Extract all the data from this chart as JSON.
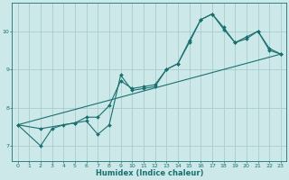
{
  "xlabel": "Humidex (Indice chaleur)",
  "bg_color": "#cce8e8",
  "grid_color": "#aacccc",
  "line_color": "#1a7070",
  "xlim": [
    -0.5,
    23.5
  ],
  "ylim": [
    6.6,
    10.75
  ],
  "xticks": [
    0,
    1,
    2,
    3,
    4,
    5,
    6,
    7,
    8,
    9,
    10,
    11,
    12,
    13,
    14,
    15,
    16,
    17,
    18,
    19,
    20,
    21,
    22,
    23
  ],
  "yticks": [
    7,
    8,
    9,
    10
  ],
  "series": [
    {
      "x": [
        0,
        2,
        3,
        4,
        5,
        6,
        7,
        8,
        9,
        10,
        11,
        12,
        13,
        14,
        15,
        16,
        17,
        18,
        19,
        20,
        21,
        22,
        23
      ],
      "y": [
        7.55,
        7.0,
        7.45,
        7.55,
        7.6,
        7.65,
        7.3,
        7.55,
        8.85,
        8.45,
        8.5,
        8.55,
        9.0,
        9.15,
        9.75,
        10.3,
        10.45,
        10.05,
        9.7,
        9.8,
        10.0,
        9.5,
        9.4
      ]
    },
    {
      "x": [
        0,
        2,
        5,
        6,
        7,
        8,
        9,
        10,
        11,
        12,
        13,
        14,
        15,
        16,
        17,
        18,
        19,
        20,
        21,
        22,
        23
      ],
      "y": [
        7.55,
        7.45,
        7.6,
        7.75,
        7.75,
        8.05,
        8.7,
        8.5,
        8.55,
        8.6,
        9.0,
        9.15,
        9.7,
        10.3,
        10.45,
        10.1,
        9.7,
        9.85,
        10.0,
        9.55,
        9.4
      ]
    },
    {
      "x": [
        0,
        23
      ],
      "y": [
        7.55,
        9.4
      ]
    }
  ]
}
